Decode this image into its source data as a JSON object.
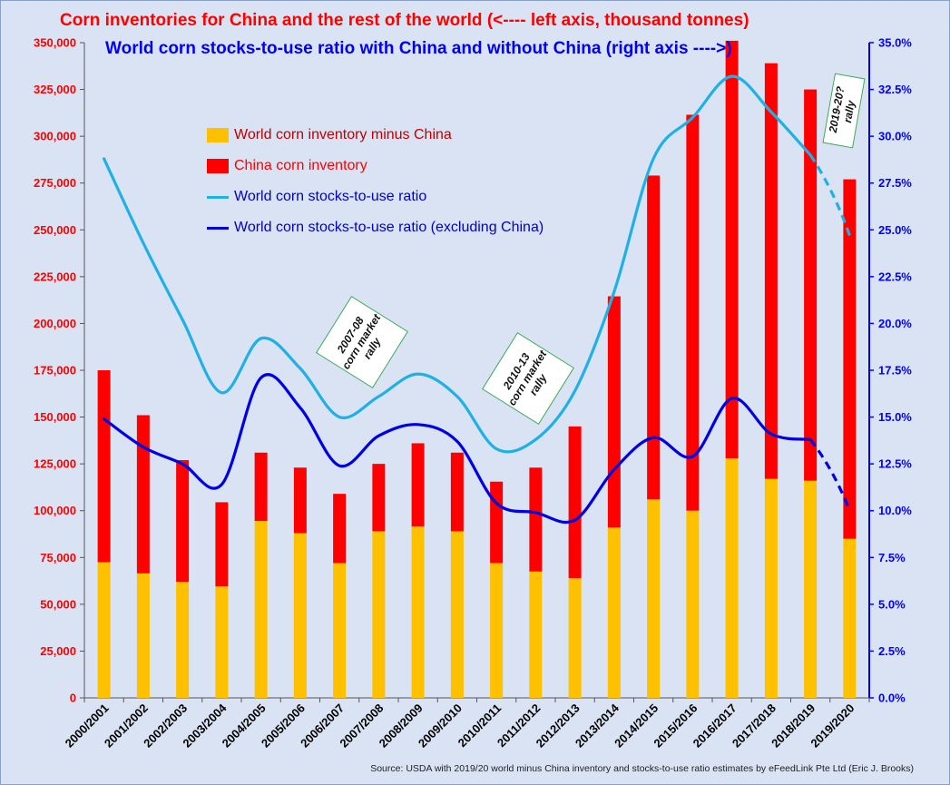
{
  "title": "Corn inventories for China and the rest of the world (<---- left axis, thousand tonnes)",
  "subtitle": "World corn stocks-to-use ratio with China and without China (right axis ---->)",
  "source": "Source: USDA with 2019/20 world minus China inventory and stocks-to-use ratio estimates by eFeedLink Pte Ltd (Eric J. Brooks)",
  "annotations": {
    "rally1": "2007-08 corn market rally",
    "rally2": "2010-13 corn market rally",
    "rally3": "2019-20? rally"
  },
  "colors": {
    "world_ex_china_bar": "#ffc000",
    "china_bar": "#ff0000",
    "ratio_world": "#1fb0e6",
    "ratio_ex_china": "#0000e6",
    "left_axis": "#ff0000",
    "right_axis": "#0000ff",
    "background": "#dae3f3"
  },
  "chart_data": {
    "type": "bar",
    "stacked": true,
    "categories": [
      "2000/2001",
      "2001/2002",
      "2002/2003",
      "2003/2004",
      "2004/2005",
      "2005/2006",
      "2006/2007",
      "2007/2008",
      "2008/2009",
      "2009/2010",
      "2010/2011",
      "2011/2012",
      "2012/2013",
      "2013/2014",
      "2014/2015",
      "2015/2016",
      "2016/2017",
      "2017/2018",
      "2018/2019",
      "2019/2020"
    ],
    "series": [
      {
        "name": "World corn inventory minus China",
        "type": "bar",
        "axis": "left",
        "values": [
          72500,
          66500,
          62000,
          59500,
          94500,
          88000,
          72000,
          89000,
          91500,
          89000,
          72000,
          67500,
          64000,
          91000,
          106000,
          100000,
          128000,
          117000,
          116000,
          85000
        ]
      },
      {
        "name": "China corn inventory",
        "type": "bar",
        "axis": "left",
        "values": [
          102500,
          84500,
          65000,
          45000,
          36500,
          35000,
          37000,
          36000,
          44500,
          42000,
          43500,
          55500,
          81000,
          123500,
          173000,
          211500,
          223000,
          222000,
          209000,
          192000
        ]
      },
      {
        "name": "World corn stocks-to-use ratio",
        "type": "line",
        "axis": "right",
        "values": [
          28.8,
          24.3,
          20.2,
          16.3,
          19.2,
          17.6,
          15.0,
          16.1,
          17.3,
          16.1,
          13.3,
          13.8,
          16.4,
          21.7,
          28.8,
          31.0,
          33.2,
          31.3,
          29.0,
          24.7
        ],
        "dashed_last_segment": true
      },
      {
        "name": "World corn stocks-to-use ratio (excluding China)",
        "type": "line",
        "axis": "right",
        "values": [
          14.9,
          13.4,
          12.5,
          11.4,
          17.1,
          15.5,
          12.4,
          14.0,
          14.6,
          13.7,
          10.4,
          9.9,
          9.5,
          12.2,
          13.9,
          12.9,
          16.0,
          14.1,
          13.8,
          10.0
        ],
        "dashed_last_segment": true
      }
    ],
    "y_left": {
      "min": 0,
      "max": 350000,
      "step": 25000,
      "tick_labels": [
        "0",
        "25,000",
        "50,000",
        "75,000",
        "100,000",
        "125,000",
        "150,000",
        "175,000",
        "200,000",
        "225,000",
        "250,000",
        "275,000",
        "300,000",
        "325,000",
        "350,000"
      ]
    },
    "y_right": {
      "min": 0,
      "max": 35,
      "step": 2.5,
      "tick_labels": [
        "0.0%",
        "2.5%",
        "5.0%",
        "7.5%",
        "10.0%",
        "12.5%",
        "15.0%",
        "17.5%",
        "20.0%",
        "22.5%",
        "25.0%",
        "27.5%",
        "30.0%",
        "32.5%",
        "35.0%"
      ]
    },
    "grid": false,
    "legend_position": "upper-left inside plot"
  }
}
